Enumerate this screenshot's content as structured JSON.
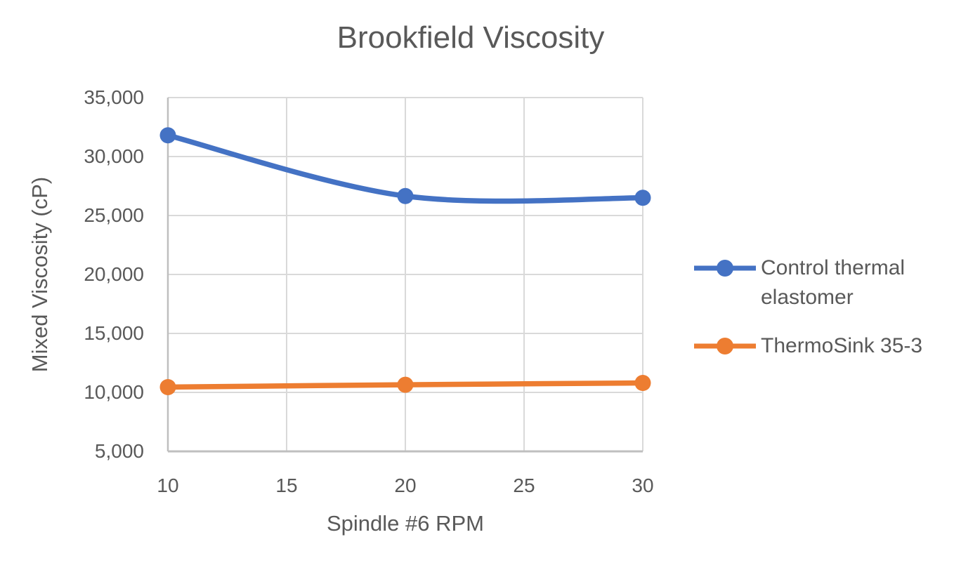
{
  "chart_data": {
    "type": "line",
    "title": "Brookfield Viscosity",
    "xlabel": "Spindle #6 RPM",
    "ylabel": "Mixed Viscosity (cP)",
    "x": [
      10,
      20,
      30
    ],
    "series": [
      {
        "name": "Control thermal elastomer",
        "color": "#4472C4",
        "values": [
          31800,
          26650,
          26500
        ],
        "smooth": true,
        "marker": "circle"
      },
      {
        "name": "ThermoSink 35-3",
        "color": "#ED7D31",
        "values": [
          10450,
          10650,
          10800
        ],
        "smooth": true,
        "marker": "circle"
      }
    ],
    "xlim": [
      10,
      30
    ],
    "ylim": [
      5000,
      35000
    ],
    "x_ticks": [
      10,
      15,
      20,
      25,
      30
    ],
    "x_tick_labels": [
      "10",
      "15",
      "20",
      "25",
      "30"
    ],
    "y_ticks": [
      5000,
      10000,
      15000,
      20000,
      25000,
      30000,
      35000
    ],
    "y_tick_labels": [
      "5,000",
      "10,000",
      "15,000",
      "20,000",
      "25,000",
      "30,000",
      "35,000"
    ],
    "grid": true,
    "legend_position": "right",
    "colors": {
      "grid": "#D9D9D9",
      "axis": "#BFBFBF",
      "text": "#595959",
      "background": "#FFFFFF"
    }
  }
}
